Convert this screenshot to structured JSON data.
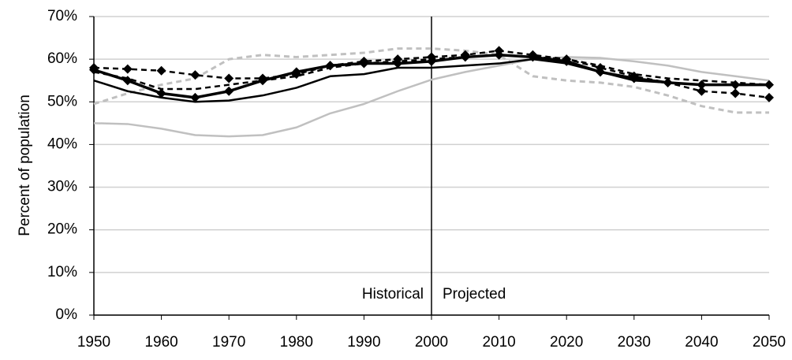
{
  "chart_data": {
    "type": "line",
    "y_label": "Percent of population",
    "x": [
      1950,
      1955,
      1960,
      1965,
      1970,
      1975,
      1980,
      1985,
      1990,
      1995,
      2000,
      2005,
      2010,
      2015,
      2020,
      2025,
      2030,
      2035,
      2040,
      2045,
      2050
    ],
    "series": [
      {
        "color": "#c0c0c0",
        "dash": false,
        "marker": "none",
        "width": 2.5,
        "values": [
          45,
          44.8,
          43.7,
          42.2,
          41.9,
          42.2,
          44,
          47.3,
          49.5,
          52.5,
          55.2,
          57,
          58.5,
          60,
          60.5,
          60.3,
          59.5,
          58.5,
          57,
          56,
          55
        ]
      },
      {
        "color": "#c0c0c0",
        "dash": true,
        "marker": "none",
        "width": 3,
        "values": [
          49.5,
          52,
          54,
          55.5,
          60,
          61,
          60.5,
          61,
          61.5,
          62.5,
          62.5,
          62,
          61,
          56,
          55,
          54.5,
          53.5,
          51.5,
          49,
          47.5,
          47.5
        ]
      },
      {
        "color": "#000000",
        "dash": false,
        "marker": "none",
        "width": 2.5,
        "values": [
          55,
          52.5,
          51,
          50,
          50.3,
          51.5,
          53.3,
          56,
          56.5,
          58,
          58,
          58.5,
          59,
          60,
          59,
          57,
          55,
          54.5,
          54,
          54,
          54
        ]
      },
      {
        "color": "#000000",
        "dash": true,
        "marker": "none",
        "width": 2.5,
        "values": [
          57,
          55.5,
          53,
          53,
          54,
          55,
          56,
          58,
          59,
          59.5,
          60,
          60.5,
          61,
          60.5,
          60,
          58.5,
          56.5,
          55.5,
          55,
          54.5,
          54
        ]
      },
      {
        "color": "#000000",
        "dash": true,
        "marker": "diamond",
        "width": 2.5,
        "values": [
          58,
          57.7,
          57.3,
          56.3,
          55.5,
          55.5,
          56.5,
          58.5,
          59.5,
          60,
          60.5,
          61,
          62,
          61,
          60,
          58,
          56,
          54.5,
          52.5,
          52,
          51
        ]
      },
      {
        "color": "#000000",
        "dash": false,
        "marker": "diamond",
        "width": 3.5,
        "values": [
          57.5,
          55,
          52,
          51,
          52.5,
          55,
          57,
          58.5,
          59,
          59,
          59.5,
          60.5,
          61,
          60.5,
          59.5,
          57,
          55.5,
          54.5,
          54,
          54,
          54
        ]
      }
    ],
    "divider_x": 2000,
    "annotations": [
      "Historical",
      "Projected"
    ],
    "xlim": [
      1950,
      2050
    ],
    "xticks": [
      1950,
      1960,
      1970,
      1980,
      1990,
      2000,
      2010,
      2020,
      2030,
      2040,
      2050
    ],
    "ylim": [
      0,
      70
    ],
    "yticks": [
      {
        "value": 0,
        "label": "0%"
      },
      {
        "value": 10,
        "label": "10%"
      },
      {
        "value": 20,
        "label": "20%"
      },
      {
        "value": 30,
        "label": "30%"
      },
      {
        "value": 40,
        "label": "40%"
      },
      {
        "value": 50,
        "label": "50%"
      },
      {
        "value": 60,
        "label": "60%"
      },
      {
        "value": 70,
        "label": "70%"
      }
    ],
    "grid": true
  }
}
